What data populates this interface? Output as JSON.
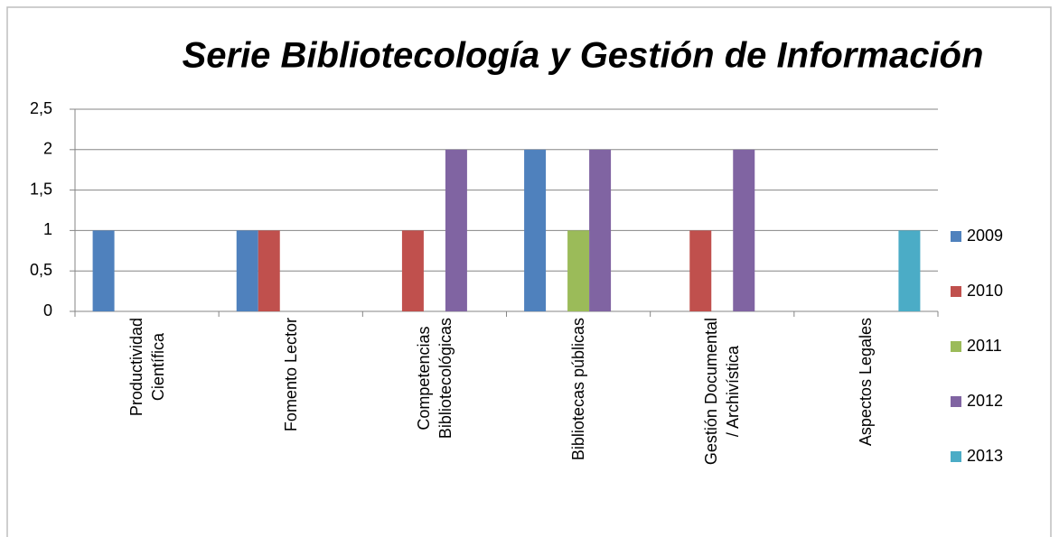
{
  "chart_data": {
    "type": "bar",
    "title": "Serie Bibliotecología y Gestión de Información",
    "categories": [
      "Productividad\nCientífica",
      "Fomento Lector",
      "Competencias\nBibliotecológicas",
      "Bibliotecas públicas",
      "Gestión Documental\n/ Archivística",
      "Aspectos Legales"
    ],
    "series": [
      {
        "name": "2009",
        "color": "#4f81bd",
        "values": [
          1,
          1,
          0,
          2,
          0,
          0
        ]
      },
      {
        "name": "2010",
        "color": "#c0504d",
        "values": [
          0,
          1,
          1,
          0,
          1,
          0
        ]
      },
      {
        "name": "2011",
        "color": "#9bbb59",
        "values": [
          0,
          0,
          0,
          1,
          0,
          0
        ]
      },
      {
        "name": "2012",
        "color": "#8064a2",
        "values": [
          0,
          0,
          2,
          2,
          2,
          0
        ]
      },
      {
        "name": "2013",
        "color": "#4bacc6",
        "values": [
          0,
          0,
          0,
          0,
          0,
          1
        ]
      }
    ],
    "ylim": [
      0,
      2.5
    ],
    "yticks": [
      0,
      {
        "value": 0.5,
        "label": "0,5"
      },
      1,
      {
        "value": 1.5,
        "label": "1,5"
      },
      2,
      {
        "value": 2.5,
        "label": "2,5"
      }
    ],
    "grid": true,
    "legend": "right"
  }
}
